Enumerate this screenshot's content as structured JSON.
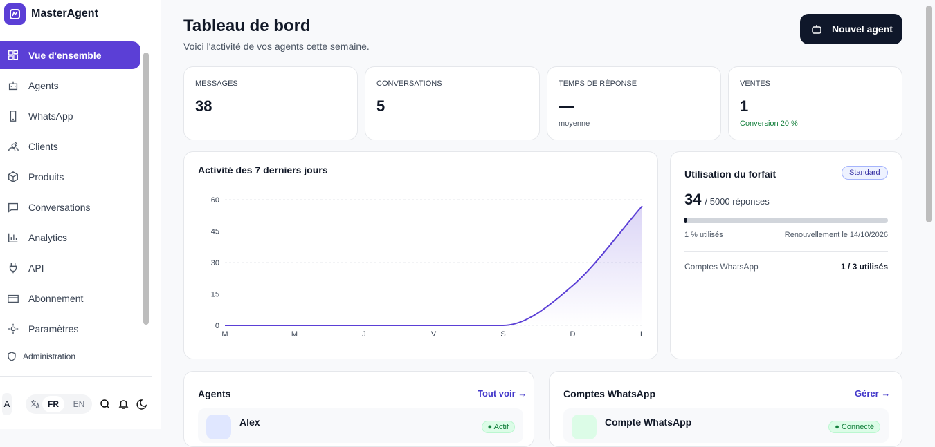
{
  "app": {
    "name": "MasterAgent"
  },
  "nav": [
    "Vue d'ensemble",
    "Agents",
    "WhatsApp",
    "Clients",
    "Produits",
    "Conversations",
    "Analytics",
    "API",
    "Abonnement",
    "Paramètres"
  ],
  "admin": "Administration",
  "footer": {
    "avatar": "A",
    "languages": [
      "FR",
      "EN"
    ]
  },
  "header": {
    "title": "Tableau de bord",
    "subtitle": "Voici l'activité de vos agents cette semaine.",
    "button": "Nouvel agent"
  },
  "stats": [
    {
      "label": "MESSAGES",
      "value": 38
    },
    {
      "label": "CONVERSATIONS",
      "value": 5
    },
    {
      "label": "TEMPS DE RÉPONSE",
      "value": "—",
      "note": "moyenne"
    },
    {
      "label": "VENTES",
      "value": 1,
      "note": "Conversion 20 %"
    }
  ],
  "chart_data": {
    "type": "line",
    "title": "Activité des 7 derniers jours",
    "categories": [
      "M",
      "M",
      "J",
      "V",
      "S",
      "D",
      "L"
    ],
    "values": [
      0,
      0,
      0,
      0,
      0,
      19,
      57
    ],
    "ylim": [
      0,
      60
    ],
    "yticks": [
      0,
      15,
      30,
      45,
      60
    ],
    "color": "#5b3fd6",
    "grid": true
  },
  "plan": {
    "title": "Utilisation du forfait",
    "badge": "Standard",
    "used": 34,
    "total": "/ 5000 réponses",
    "usage": {
      "value": 1,
      "label": "1 % utilisés"
    },
    "renewal": "Renouvellement le 14/10/2026",
    "row_label": "Comptes WhatsApp",
    "row_value": "1 / 3 utilisés"
  },
  "agents": {
    "title": "Agents",
    "link": "Tout voir",
    "items": [
      {
        "name": "Alex",
        "status": "Actif"
      }
    ]
  },
  "whatsapp": {
    "title": "Comptes WhatsApp",
    "link": "Gérer",
    "items": [
      {
        "name": "Compte WhatsApp",
        "status": "Connecté"
      }
    ]
  }
}
